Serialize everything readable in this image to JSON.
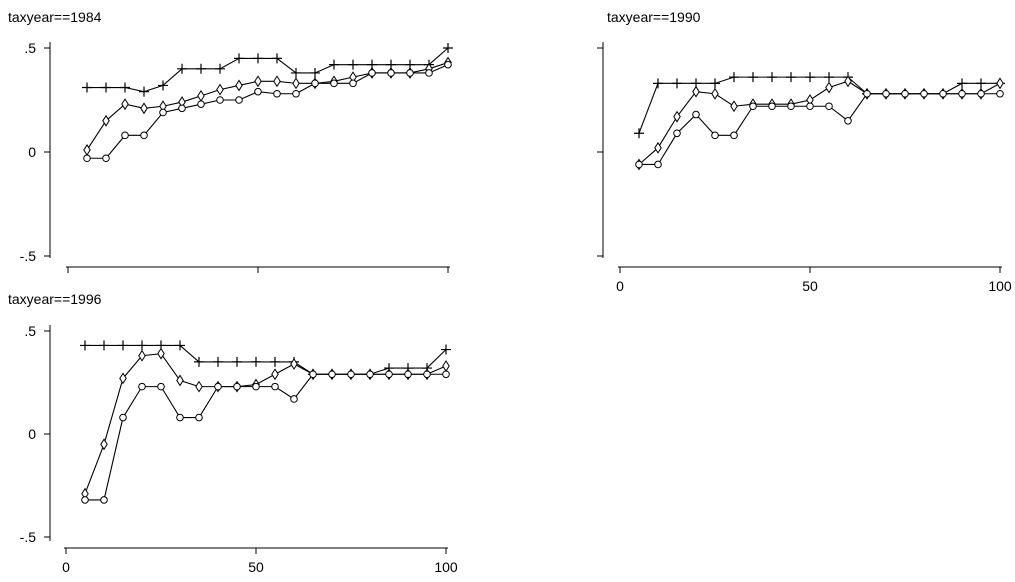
{
  "chart_data": [
    {
      "type": "line",
      "title": "taxyear==1984",
      "xlabel": "",
      "ylabel": "",
      "x": [
        5,
        10,
        15,
        20,
        25,
        30,
        35,
        40,
        45,
        50,
        55,
        60,
        65,
        70,
        75,
        80,
        85,
        90,
        95,
        100
      ],
      "xlim": [
        0,
        100
      ],
      "ylim": [
        -0.55,
        0.58
      ],
      "yticks": [
        {
          "value": 0.5,
          "label": ".5"
        },
        {
          "value": 0,
          "label": "0"
        },
        {
          "value": -0.5,
          "label": "-.5"
        }
      ],
      "xticks": [
        {
          "value": 0,
          "label": ""
        },
        {
          "value": 50,
          "label": ""
        },
        {
          "value": 100,
          "label": ""
        }
      ],
      "grid": false,
      "series": [
        {
          "marker": "plus",
          "values": [
            0.31,
            0.31,
            0.31,
            0.29,
            0.32,
            0.4,
            0.4,
            0.4,
            0.45,
            0.45,
            0.45,
            0.38,
            0.38,
            0.42,
            0.42,
            0.42,
            0.42,
            0.42,
            0.42,
            0.5
          ]
        },
        {
          "marker": "diamond",
          "values": [
            0.01,
            0.15,
            0.23,
            0.21,
            0.22,
            0.24,
            0.27,
            0.3,
            0.32,
            0.34,
            0.34,
            0.33,
            0.33,
            0.34,
            0.36,
            0.38,
            0.38,
            0.38,
            0.4,
            0.43
          ]
        },
        {
          "marker": "circle",
          "values": [
            -0.03,
            -0.03,
            0.08,
            0.08,
            0.19,
            0.21,
            0.23,
            0.25,
            0.25,
            0.29,
            0.28,
            0.28,
            0.33,
            0.33,
            0.33,
            0.38,
            0.38,
            0.38,
            0.38,
            0.42
          ]
        }
      ]
    },
    {
      "type": "line",
      "title": "taxyear==1990",
      "xlabel": "",
      "ylabel": "",
      "x": [
        5,
        10,
        15,
        20,
        25,
        30,
        35,
        40,
        45,
        50,
        55,
        60,
        65,
        70,
        75,
        80,
        85,
        90,
        95,
        100
      ],
      "xlim": [
        0,
        100
      ],
      "ylim": [
        -0.55,
        0.58
      ],
      "yticks": [
        {
          "value": 0.5,
          "label": ""
        },
        {
          "value": 0,
          "label": ""
        },
        {
          "value": -0.5,
          "label": ""
        }
      ],
      "xticks": [
        {
          "value": 0,
          "label": "0"
        },
        {
          "value": 50,
          "label": "50"
        },
        {
          "value": 100,
          "label": "100"
        }
      ],
      "grid": false,
      "series": [
        {
          "marker": "plus",
          "values": [
            0.09,
            0.33,
            0.33,
            0.33,
            0.33,
            0.36,
            0.36,
            0.36,
            0.36,
            0.36,
            0.36,
            0.36,
            0.28,
            0.28,
            0.28,
            0.28,
            0.28,
            0.33,
            0.33,
            0.33
          ]
        },
        {
          "marker": "diamond",
          "values": [
            -0.06,
            0.02,
            0.17,
            0.29,
            0.28,
            0.22,
            0.23,
            0.23,
            0.23,
            0.25,
            0.31,
            0.34,
            0.28,
            0.28,
            0.28,
            0.28,
            0.28,
            0.28,
            0.28,
            0.33
          ]
        },
        {
          "marker": "circle",
          "values": [
            -0.06,
            -0.06,
            0.09,
            0.18,
            0.08,
            0.08,
            0.22,
            0.22,
            0.22,
            0.22,
            0.22,
            0.15,
            0.28,
            0.28,
            0.28,
            0.28,
            0.28,
            0.28,
            0.28,
            0.28
          ]
        }
      ]
    },
    {
      "type": "line",
      "title": "taxyear==1996",
      "xlabel": "",
      "ylabel": "",
      "x": [
        5,
        10,
        15,
        20,
        25,
        30,
        35,
        40,
        45,
        50,
        55,
        60,
        65,
        70,
        75,
        80,
        85,
        90,
        95,
        100
      ],
      "xlim": [
        0,
        100
      ],
      "ylim": [
        -0.55,
        0.58
      ],
      "yticks": [
        {
          "value": 0.5,
          "label": ".5"
        },
        {
          "value": 0,
          "label": "0"
        },
        {
          "value": -0.5,
          "label": "-.5"
        }
      ],
      "xticks": [
        {
          "value": 0,
          "label": "0"
        },
        {
          "value": 50,
          "label": "50"
        },
        {
          "value": 100,
          "label": "100"
        }
      ],
      "grid": false,
      "series": [
        {
          "marker": "plus",
          "values": [
            0.43,
            0.43,
            0.43,
            0.43,
            0.43,
            0.43,
            0.35,
            0.35,
            0.35,
            0.35,
            0.35,
            0.35,
            0.29,
            0.29,
            0.29,
            0.29,
            0.32,
            0.32,
            0.32,
            0.41
          ]
        },
        {
          "marker": "diamond",
          "values": [
            -0.29,
            -0.05,
            0.27,
            0.38,
            0.39,
            0.26,
            0.23,
            0.23,
            0.23,
            0.24,
            0.29,
            0.34,
            0.29,
            0.29,
            0.29,
            0.29,
            0.29,
            0.29,
            0.29,
            0.33
          ]
        },
        {
          "marker": "circle",
          "values": [
            -0.32,
            -0.32,
            0.08,
            0.23,
            0.23,
            0.08,
            0.08,
            0.23,
            0.23,
            0.23,
            0.23,
            0.17,
            0.29,
            0.29,
            0.29,
            0.29,
            0.29,
            0.29,
            0.29,
            0.29
          ]
        }
      ]
    }
  ]
}
